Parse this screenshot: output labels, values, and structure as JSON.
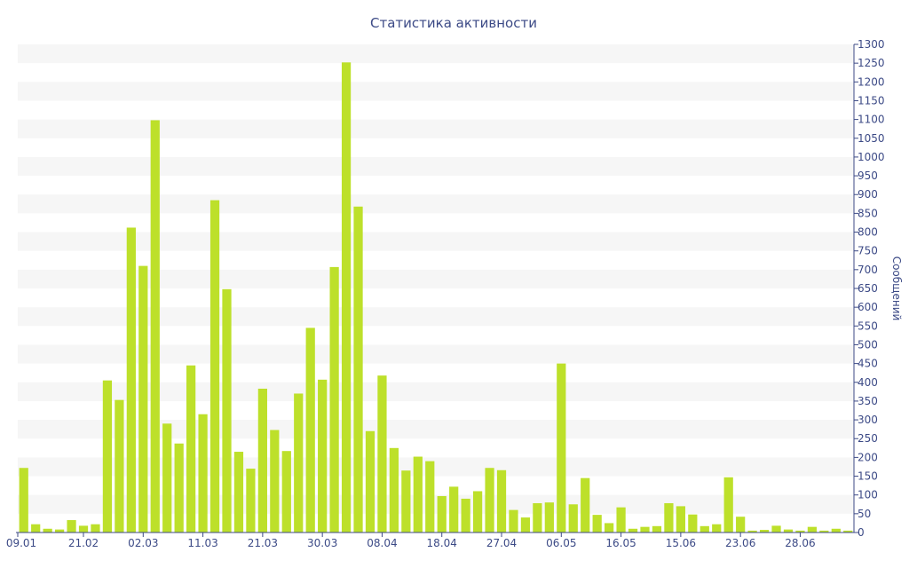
{
  "chart_data": {
    "type": "bar",
    "title": "Статистика активности",
    "ylabel": "Сообщений",
    "xlabel": "",
    "ylim": [
      0,
      1300
    ],
    "y_tick_step": 50,
    "grid": "alternating horizontal bands",
    "y_axis_side": "right",
    "bar_color": "#bde02a",
    "band_color": "#f6f6f6",
    "text_color": "#3c4a86",
    "axis_color": "#3c4a86",
    "x_tick_labels": [
      {
        "label": "09.01",
        "index": 0
      },
      {
        "label": "21.02",
        "index": 5
      },
      {
        "label": "02.03",
        "index": 10
      },
      {
        "label": "11.03",
        "index": 15
      },
      {
        "label": "21.03",
        "index": 20
      },
      {
        "label": "30.03",
        "index": 25
      },
      {
        "label": "08.04",
        "index": 30
      },
      {
        "label": "18.04",
        "index": 35
      },
      {
        "label": "27.04",
        "index": 40
      },
      {
        "label": "06.05",
        "index": 45
      },
      {
        "label": "16.05",
        "index": 50
      },
      {
        "label": "15.06",
        "index": 55
      },
      {
        "label": "23.06",
        "index": 60
      },
      {
        "label": "28.06",
        "index": 65
      }
    ],
    "values": [
      172,
      22,
      10,
      8,
      33,
      18,
      22,
      405,
      353,
      812,
      710,
      1098,
      290,
      237,
      445,
      315,
      885,
      648,
      215,
      170,
      383,
      273,
      217,
      370,
      545,
      407,
      707,
      1252,
      868,
      270,
      418,
      225,
      165,
      202,
      190,
      97,
      122,
      90,
      110,
      172,
      166,
      60,
      40,
      78,
      80,
      450,
      75,
      145,
      47,
      25,
      67,
      10,
      15,
      17,
      78,
      70,
      48,
      17,
      22,
      147,
      42,
      5,
      7,
      18,
      8,
      5,
      15,
      5,
      10,
      5
    ]
  }
}
